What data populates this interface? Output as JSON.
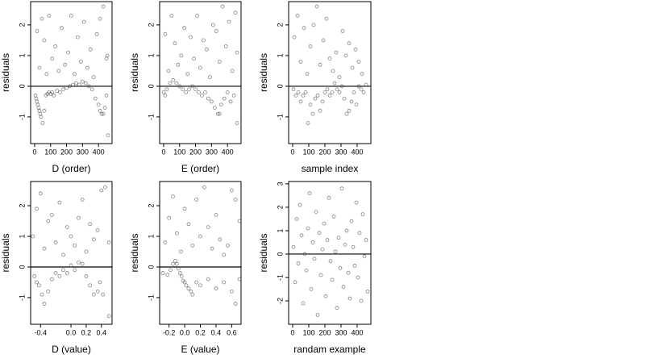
{
  "chart_data": [
    {
      "type": "scatter",
      "xlabel": "D (order)",
      "ylabel": "residuals",
      "color": "#333333",
      "hline": 0,
      "xlim": [
        -25,
        485
      ],
      "ylim": [
        -1.87,
        2.76
      ],
      "xticks": [
        0,
        100,
        200,
        300,
        400
      ],
      "yticks": [
        -1,
        0,
        1,
        2
      ],
      "x": [
        5,
        10,
        15,
        20,
        25,
        30,
        35,
        40,
        50,
        60,
        70,
        80,
        90,
        100,
        110,
        120,
        140,
        160,
        180,
        200,
        220,
        240,
        260,
        280,
        300,
        320,
        340,
        360,
        380,
        400,
        410,
        420,
        430,
        440,
        450,
        460,
        15,
        30,
        45,
        60,
        75,
        90,
        110,
        130,
        150,
        170,
        190,
        210,
        230,
        250,
        270,
        290,
        310,
        330,
        350,
        370,
        390,
        410,
        430,
        450,
        455
      ],
      "values": [
        -0.3,
        -0.4,
        -0.5,
        -0.6,
        -0.7,
        -0.8,
        -0.9,
        -1.0,
        -1.2,
        -0.8,
        -0.3,
        -0.25,
        -0.2,
        -0.25,
        -0.2,
        -0.3,
        -0.15,
        -0.2,
        -0.1,
        -0.05,
        0,
        0.05,
        0.1,
        0.05,
        0.15,
        0.1,
        0,
        -0.1,
        -0.4,
        -0.6,
        -0.8,
        -0.9,
        -0.9,
        -0.7,
        -0.3,
        -1.6,
        1.8,
        0.6,
        2.2,
        1.5,
        0.4,
        2.3,
        0.9,
        1.3,
        0.5,
        1.9,
        0.7,
        1.1,
        2.3,
        0.4,
        1.6,
        0.8,
        2.1,
        0.6,
        1.2,
        0.3,
        1.7,
        2.2,
        2.6,
        0.9,
        1.0
      ]
    },
    {
      "type": "scatter",
      "xlabel": "E (order)",
      "ylabel": "residuals",
      "color": "#333333",
      "hline": 0,
      "xlim": [
        -25,
        485
      ],
      "ylim": [
        -1.87,
        2.76
      ],
      "xticks": [
        0,
        100,
        200,
        300,
        400
      ],
      "yticks": [
        -1,
        0,
        1,
        2
      ],
      "x": [
        0,
        10,
        20,
        40,
        60,
        80,
        100,
        120,
        140,
        160,
        180,
        200,
        220,
        240,
        260,
        280,
        300,
        320,
        340,
        350,
        360,
        380,
        400,
        420,
        440,
        460,
        10,
        30,
        50,
        70,
        90,
        110,
        130,
        150,
        170,
        190,
        210,
        230,
        250,
        270,
        290,
        310,
        330,
        350,
        370,
        390,
        410,
        430,
        450,
        460
      ],
      "values": [
        -0.2,
        -0.3,
        -0.1,
        0.1,
        0.2,
        0.1,
        0,
        -0.1,
        -0.2,
        -0.1,
        0,
        -0.1,
        -0.2,
        -0.3,
        -0.2,
        -0.4,
        -0.5,
        -0.7,
        -0.9,
        -0.9,
        -0.6,
        -0.4,
        -0.2,
        -0.5,
        -0.3,
        -1.2,
        1.7,
        0.5,
        2.3,
        1.4,
        0.7,
        1.0,
        1.9,
        0.4,
        1.6,
        0.9,
        2.3,
        0.6,
        1.5,
        1.2,
        0.3,
        2.0,
        1.8,
        0.8,
        2.6,
        1.3,
        2.1,
        0.5,
        2.4,
        1.1
      ]
    },
    {
      "type": "scatter",
      "xlabel": "sample index",
      "ylabel": "residuals",
      "color": "#333333",
      "hline": 0,
      "xlim": [
        -25,
        485
      ],
      "ylim": [
        -1.87,
        2.76
      ],
      "xticks": [
        0,
        100,
        200,
        300,
        400
      ],
      "yticks": [
        -1,
        0,
        1,
        2
      ],
      "x": [
        5,
        20,
        35,
        50,
        65,
        80,
        95,
        110,
        125,
        140,
        155,
        170,
        185,
        200,
        215,
        230,
        245,
        260,
        275,
        290,
        305,
        320,
        335,
        350,
        365,
        380,
        395,
        410,
        425,
        440,
        455,
        10,
        30,
        50,
        70,
        90,
        110,
        130,
        150,
        170,
        190,
        210,
        230,
        250,
        270,
        290,
        310,
        330,
        350,
        370,
        390,
        410,
        430
      ],
      "values": [
        -0.1,
        -0.3,
        -0.2,
        -0.5,
        -0.3,
        -0.2,
        -1.2,
        -0.6,
        -0.9,
        -0.4,
        -0.3,
        -0.8,
        -0.5,
        -0.2,
        -0.1,
        -0.3,
        -0.2,
        0.1,
        -0.1,
        -0.2,
        0,
        -0.4,
        -0.9,
        -0.8,
        -0.5,
        -0.2,
        -0.6,
        0,
        -0.1,
        -0.2,
        0.05,
        1.6,
        2.3,
        0.8,
        1.9,
        0.4,
        1.3,
        2.0,
        2.6,
        0.7,
        1.5,
        2.2,
        0.9,
        0.5,
        1.1,
        0.3,
        1.8,
        1.0,
        1.4,
        0.6,
        1.2,
        0.8,
        0.4
      ]
    },
    {
      "type": "scatter",
      "xlabel": "D (value)",
      "ylabel": "residuals",
      "color": "#333333",
      "hline": 0,
      "xlim": [
        -0.53,
        0.54
      ],
      "ylim": [
        -1.87,
        2.79
      ],
      "xticks": [
        -0.4,
        {
          "value": 0,
          "label": "0.0"
        },
        0.2,
        0.4
      ],
      "yticks": [
        -1,
        0,
        1,
        2
      ],
      "x": [
        -0.48,
        -0.45,
        -0.42,
        -0.38,
        -0.35,
        -0.3,
        -0.25,
        -0.2,
        -0.15,
        -0.1,
        -0.05,
        0,
        0.05,
        0.1,
        0.15,
        0.2,
        0.25,
        0.3,
        0.35,
        0.38,
        0.42,
        0.5,
        -0.5,
        -0.45,
        -0.4,
        -0.35,
        -0.3,
        -0.25,
        -0.2,
        -0.15,
        -0.1,
        -0.05,
        0,
        0.05,
        0.1,
        0.15,
        0.2,
        0.25,
        0.3,
        0.35,
        0.4,
        0.45,
        0.5
      ],
      "values": [
        -0.3,
        -0.5,
        -0.6,
        -0.9,
        -1.2,
        -0.8,
        -0.4,
        -0.2,
        -0.3,
        -0.1,
        -0.2,
        0.05,
        -0.1,
        0.15,
        0.1,
        -0.3,
        -0.6,
        -0.9,
        -0.8,
        -0.5,
        -0.9,
        -1.6,
        1.0,
        1.9,
        2.4,
        0.6,
        1.5,
        1.7,
        0.8,
        2.1,
        0.4,
        1.3,
        1.0,
        0.7,
        1.6,
        2.2,
        0.5,
        1.4,
        0.9,
        1.2,
        2.5,
        2.6,
        0.8
      ]
    },
    {
      "type": "scatter",
      "xlabel": "E (value)",
      "ylabel": "residuals",
      "color": "#333333",
      "hline": 0,
      "xlim": [
        -0.32,
        0.72
      ],
      "ylim": [
        -1.87,
        2.79
      ],
      "xticks": [
        -0.2,
        {
          "value": 0,
          "label": "0.0"
        },
        0.2,
        0.4,
        0.6
      ],
      "yticks": [
        -1,
        0,
        1,
        2
      ],
      "x": [
        -0.28,
        -0.22,
        -0.18,
        -0.15,
        -0.12,
        -0.1,
        -0.08,
        -0.06,
        -0.04,
        -0.02,
        0,
        0.02,
        0.05,
        0.08,
        0.1,
        0.15,
        0.2,
        0.3,
        0.4,
        0.5,
        0.6,
        0.65,
        0.7,
        -0.25,
        -0.2,
        -0.15,
        -0.1,
        -0.05,
        0,
        0.05,
        0.1,
        0.15,
        0.2,
        0.25,
        0.3,
        0.35,
        0.4,
        0.45,
        0.5,
        0.55,
        0.6,
        0.65,
        0.7
      ],
      "values": [
        -0.2,
        -0.25,
        -0.1,
        0.1,
        0.2,
        0.1,
        -0.05,
        -0.2,
        -0.3,
        -0.45,
        -0.5,
        -0.6,
        -0.7,
        -0.8,
        -0.9,
        -0.5,
        -0.6,
        -0.4,
        -0.7,
        -0.5,
        -0.8,
        -1.2,
        -0.4,
        0.8,
        1.6,
        2.3,
        1.1,
        0.5,
        1.9,
        1.4,
        0.7,
        2.2,
        1.0,
        2.6,
        1.3,
        0.6,
        1.7,
        0.9,
        0.4,
        0.7,
        2.5,
        2.2,
        1.5
      ]
    },
    {
      "type": "scatter",
      "xlabel": "randam example",
      "ylabel": "residuals",
      "color": "#333333",
      "hline": 0,
      "xlim": [
        -25,
        485
      ],
      "ylim": [
        -3.0,
        3.1
      ],
      "xticks": [
        0,
        100,
        200,
        300,
        400
      ],
      "yticks": [
        -2,
        -1,
        0,
        1,
        2,
        3
      ],
      "x": [
        5,
        15,
        25,
        35,
        45,
        55,
        65,
        75,
        85,
        95,
        105,
        115,
        125,
        135,
        145,
        155,
        165,
        175,
        185,
        195,
        205,
        215,
        225,
        235,
        245,
        255,
        265,
        275,
        285,
        295,
        305,
        315,
        325,
        335,
        345,
        355,
        365,
        375,
        385,
        395,
        405,
        415,
        425,
        435,
        445,
        455,
        465
      ],
      "values": [
        0.3,
        -1.2,
        1.5,
        -0.4,
        2.1,
        0.8,
        -2.1,
        0.0,
        -0.7,
        1.1,
        2.6,
        -1.5,
        0.5,
        -0.2,
        1.8,
        -2.6,
        0.9,
        -0.9,
        0.2,
        1.3,
        -1.8,
        0.6,
        2.4,
        -0.3,
        -1.1,
        1.6,
        0.1,
        -2.3,
        0.7,
        -0.6,
        2.8,
        -1.4,
        0.4,
        1.0,
        -0.8,
        -1.9,
        1.4,
        0.3,
        -0.5,
        2.2,
        -1.0,
        0.9,
        -2.0,
        1.7,
        -0.1,
        0.6,
        -1.6
      ]
    }
  ]
}
